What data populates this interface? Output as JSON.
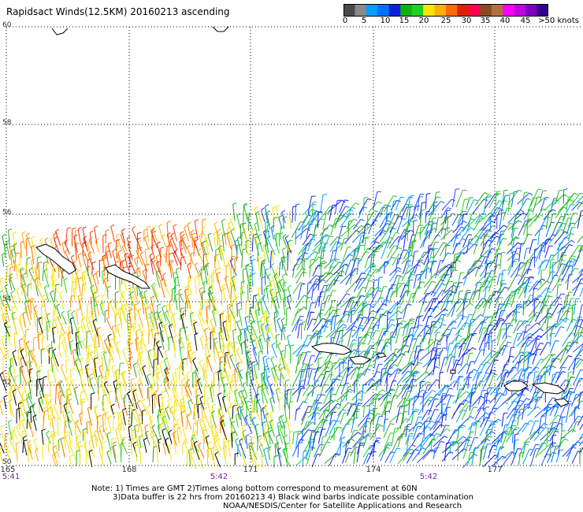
{
  "title": "Rapidsact Winds(12.5KM) 20160213 ascending",
  "colorbar": {
    "colors": [
      "#4a4a4a",
      "#8a8a8a",
      "#00a0ff",
      "#0070ff",
      "#1020e0",
      "#10b010",
      "#20d020",
      "#f5e600",
      "#ffb000",
      "#ff6a00",
      "#e02000",
      "#ff0050",
      "#8b4a22",
      "#b07040",
      "#ff00ff",
      "#c000e0",
      "#8000c0",
      "#30008a"
    ],
    "labels": [
      "0",
      "5",
      "10",
      "15",
      "20",
      "25",
      "30",
      "35",
      "40",
      "45",
      ">50 knots"
    ]
  },
  "latitudes": [
    "60",
    "58",
    "56",
    "54",
    "52",
    "50"
  ],
  "longitudes": [
    "165",
    "168",
    "171",
    "174",
    "177"
  ],
  "times": [
    "5:41",
    "5:42",
    "5:42"
  ],
  "notes": [
    "Note: 1) Times are GMT 2)Times along bottom correspond to measurement at 60N",
    "3)Data buffer is 22 hrs from 20160213 4) Black wind barbs indicate possible contamination",
    "NOAA/NESDIS/Center for Satellite Applications and Research"
  ]
}
